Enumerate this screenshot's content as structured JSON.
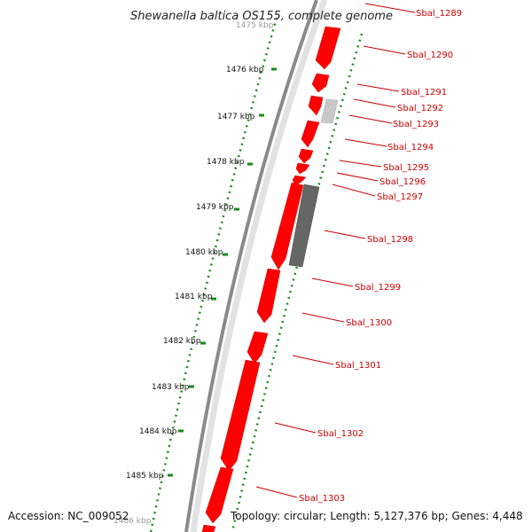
{
  "title": "Shewanella baltica OS155, complete genome",
  "footer": {
    "accession": "Accession: NC_009052",
    "summary": "Topology: circular; Length: 5,127,376 bp; Genes: 4,448"
  },
  "colors": {
    "forward_gene": "#ff0000",
    "backbone": "#808080",
    "ruler": "#1a8a1a",
    "label": "#cc0000",
    "other_feature_light": "#c8c8c8",
    "other_feature_dark": "#666666"
  },
  "ruler_labels": [
    {
      "label": "1475 kbp",
      "faded": true
    },
    {
      "label": "1476 kbp"
    },
    {
      "label": "1477 kbp"
    },
    {
      "label": "1478 kbp"
    },
    {
      "label": "1479 kbp"
    },
    {
      "label": "1480 kbp"
    },
    {
      "label": "1481 kbp"
    },
    {
      "label": "1482 kbp"
    },
    {
      "label": "1483 kbp"
    },
    {
      "label": "1484 kbp"
    },
    {
      "label": "1485 kbp"
    },
    {
      "label": "1486 kbp",
      "faded": true
    }
  ],
  "genes": [
    "Sbal_1289",
    "Sbal_1290",
    "Sbal_1291",
    "Sbal_1292",
    "Sbal_1293",
    "Sbal_1294",
    "Sbal_1295",
    "Sbal_1296",
    "Sbal_1297",
    "Sbal_1298",
    "Sbal_1299",
    "Sbal_1300",
    "Sbal_1301",
    "Sbal_1302",
    "Sbal_1303"
  ]
}
